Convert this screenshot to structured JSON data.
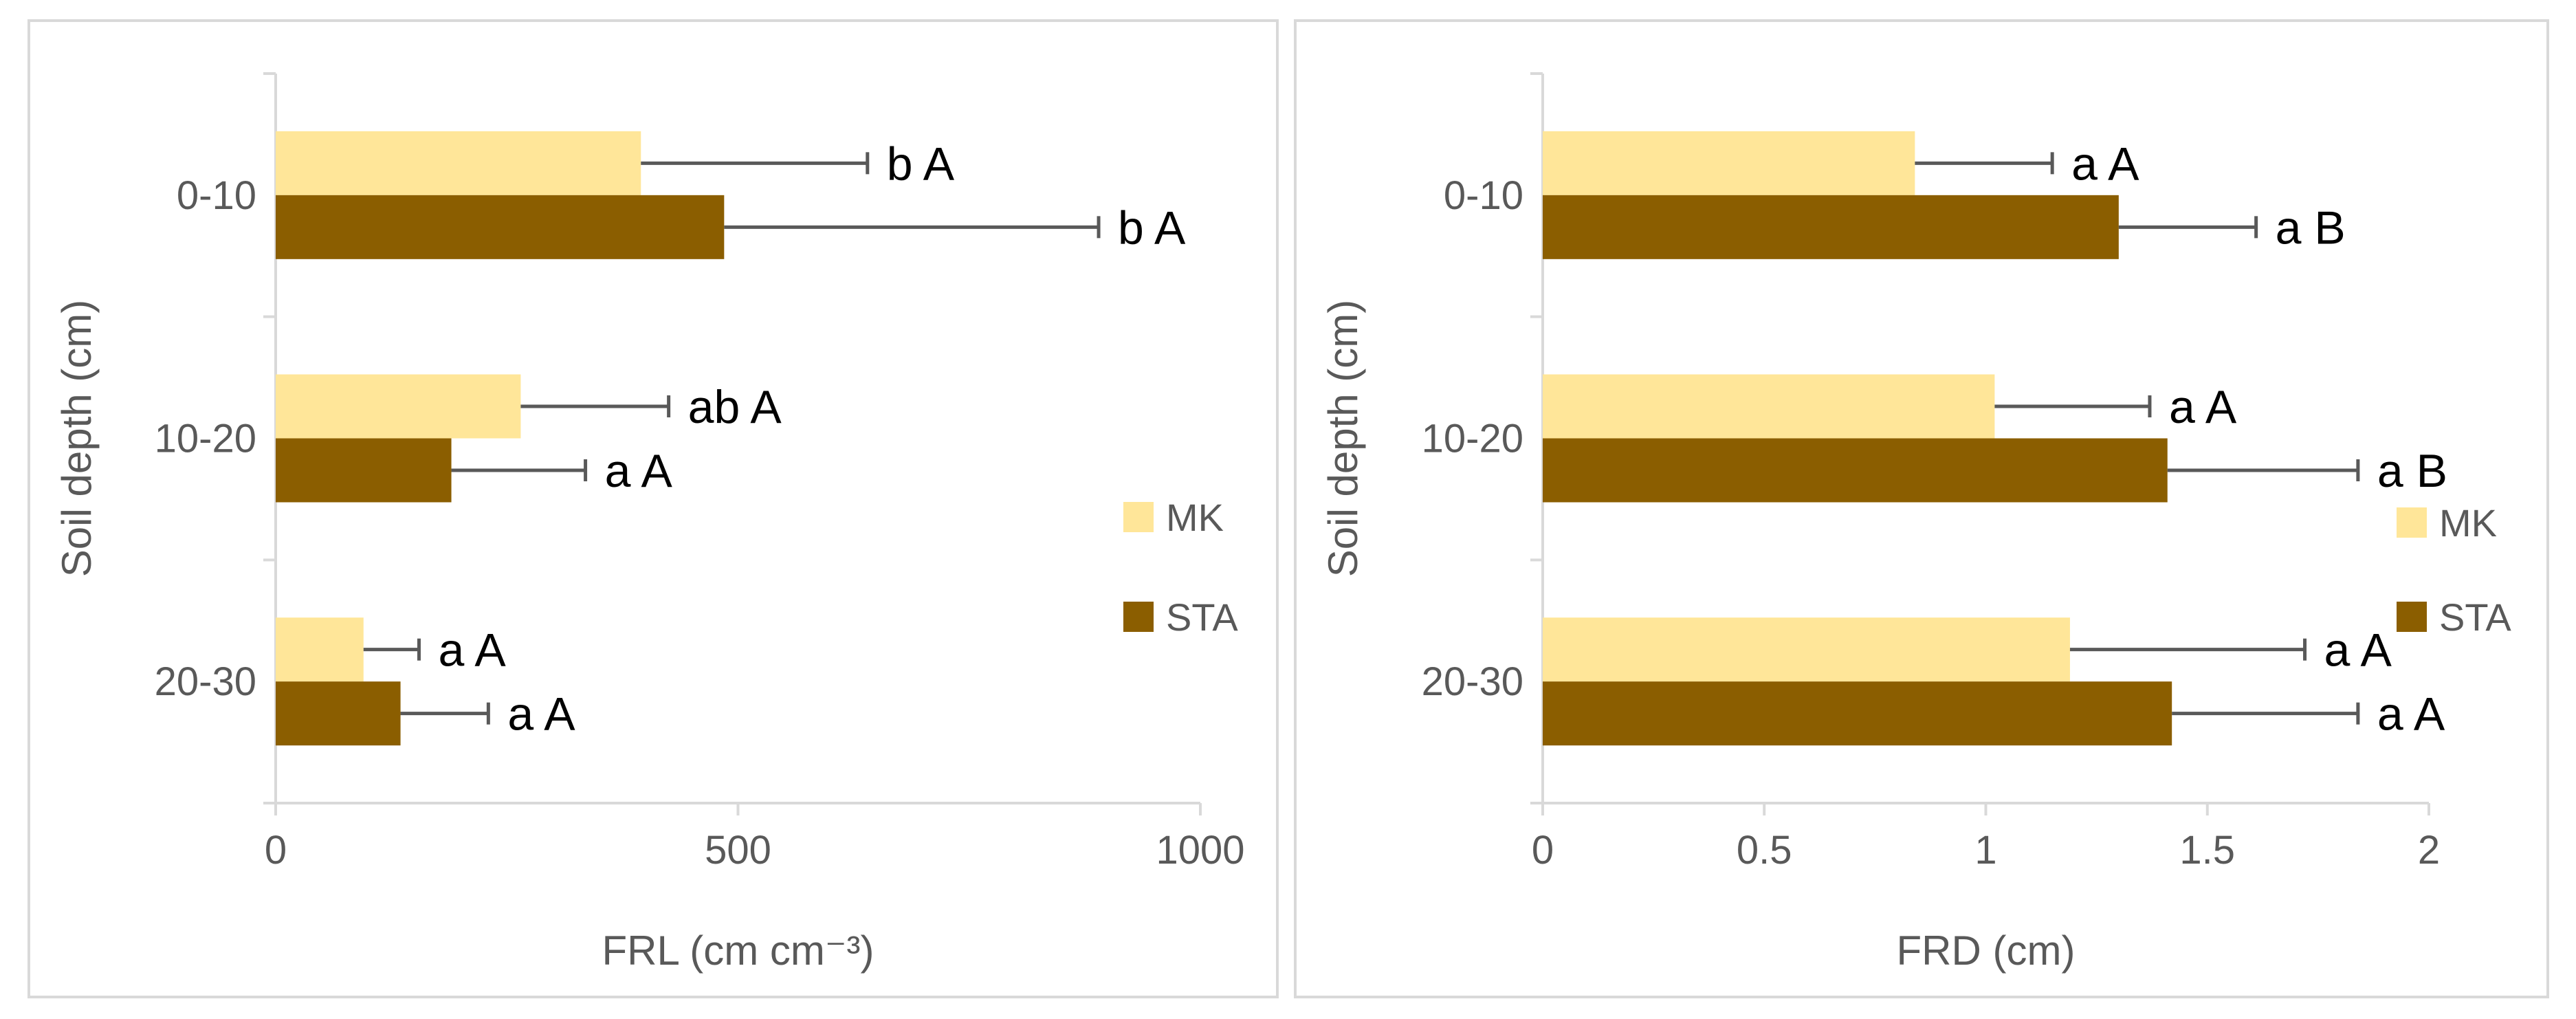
{
  "chart_data": [
    {
      "type": "bar",
      "orientation": "horizontal",
      "categories": [
        "0-10",
        "10-20",
        "20-30"
      ],
      "ylabel": "Soil depth (cm)",
      "xlabel": "FRL (cm cm⁻³)",
      "xlim": [
        0,
        1000
      ],
      "xticks": [
        "0",
        "500",
        "1000"
      ],
      "xtick_values": [
        0,
        500,
        1000
      ],
      "grid": false,
      "legend_position": "right",
      "series": [
        {
          "name": "MK",
          "color": "#FFE699",
          "values": [
            395,
            265,
            95
          ],
          "errors": [
            245,
            160,
            60
          ],
          "labels": [
            "b A",
            "ab A",
            "a A"
          ]
        },
        {
          "name": "STA",
          "color": "#8B5E00",
          "values": [
            485,
            190,
            135
          ],
          "errors": [
            405,
            145,
            95
          ],
          "labels": [
            "b A",
            "a A",
            "a A"
          ]
        }
      ]
    },
    {
      "type": "bar",
      "orientation": "horizontal",
      "categories": [
        "0-10",
        "10-20",
        "20-30"
      ],
      "ylabel": "Soil depth (cm)",
      "xlabel": "FRD (cm)",
      "xlim": [
        0,
        2
      ],
      "xticks": [
        "0",
        "0.5",
        "1",
        "1.5",
        "2"
      ],
      "xtick_values": [
        0,
        0.5,
        1,
        1.5,
        2
      ],
      "grid": false,
      "legend_position": "right",
      "series": [
        {
          "name": "MK",
          "color": "#FFE699",
          "values": [
            0.84,
            1.02,
            1.19
          ],
          "errors": [
            0.31,
            0.35,
            0.53
          ],
          "labels": [
            "a A",
            "a A",
            "a A"
          ]
        },
        {
          "name": "STA",
          "color": "#8B5E00",
          "values": [
            1.3,
            1.41,
            1.42
          ],
          "errors": [
            0.31,
            0.43,
            0.42
          ],
          "labels": [
            "a B",
            "a B",
            "a A"
          ]
        }
      ]
    }
  ]
}
